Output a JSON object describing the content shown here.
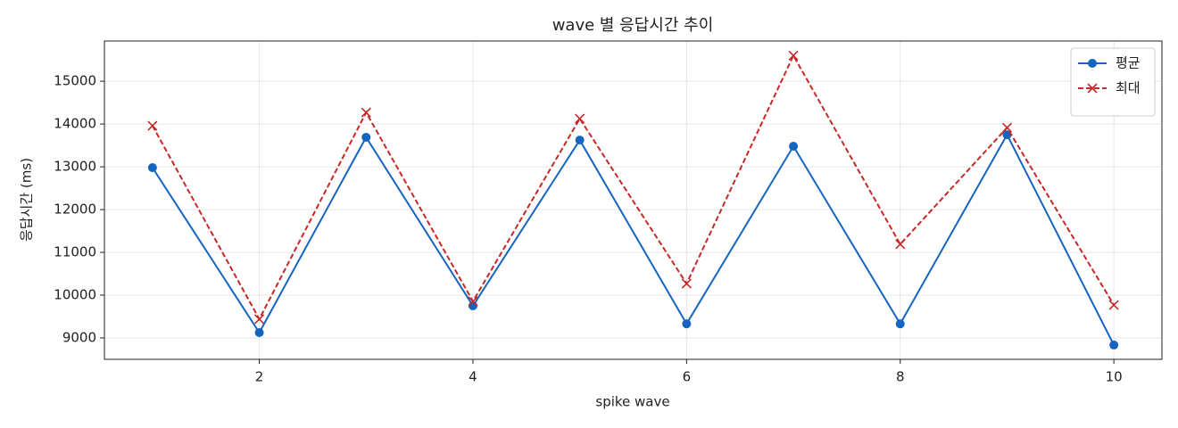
{
  "chart_data": {
    "type": "line",
    "title": "wave 별 응답시간 추이",
    "xlabel": "spike wave",
    "ylabel": "응답시간 (ms)",
    "x": [
      1,
      2,
      3,
      4,
      5,
      6,
      7,
      8,
      9,
      10
    ],
    "series": [
      {
        "name": "평균",
        "color": "#1565c0",
        "linestyle": "solid",
        "marker": "circle",
        "values": [
          12980,
          9125,
          13690,
          9750,
          13625,
          9330,
          13480,
          9330,
          13750,
          8835
        ]
      },
      {
        "name": "최대",
        "color": "#c62828",
        "linestyle": "dashed",
        "marker": "x",
        "values": [
          13960,
          9440,
          14270,
          9855,
          14125,
          10270,
          15600,
          11190,
          13915,
          9770
        ]
      }
    ],
    "xlim": [
      0.55,
      10.45
    ],
    "ylim": [
      8500,
      15940
    ],
    "xticks": [
      2,
      4,
      6,
      8,
      10
    ],
    "yticks": [
      9000,
      10000,
      11000,
      12000,
      13000,
      14000,
      15000
    ],
    "grid": true,
    "legend": "upper right"
  }
}
